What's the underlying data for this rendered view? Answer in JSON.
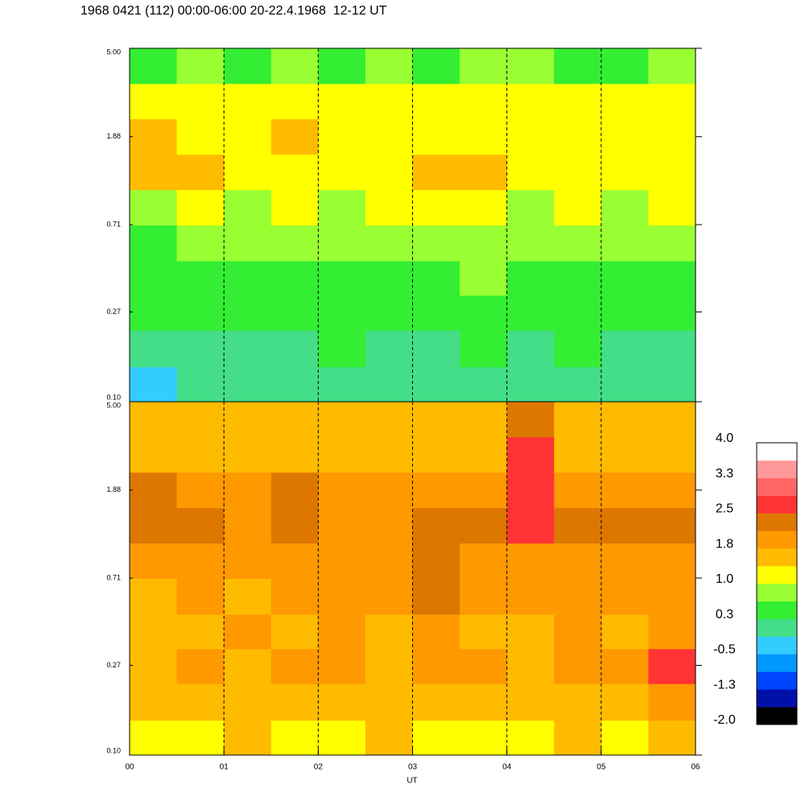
{
  "chart_data": {
    "type": "heatmap",
    "title": "1968 0421 (112) 00:00-06:00 20-22.4.1968  12-12 UT",
    "x_label": "UT",
    "xlim": [
      0,
      6
    ],
    "xticks": [
      {
        "value": 0,
        "label": "00"
      },
      {
        "value": 1,
        "label": "01"
      },
      {
        "value": 2,
        "label": "02"
      },
      {
        "value": 3,
        "label": "03"
      },
      {
        "value": 4,
        "label": "04"
      },
      {
        "value": 5,
        "label": "05"
      },
      {
        "value": 6,
        "label": "06"
      }
    ],
    "ylim": [
      0.1,
      5
    ],
    "log_y": true,
    "yticks": [
      {
        "value": 0.1,
        "label": "0.10"
      },
      0.27,
      0.71,
      1.88,
      {
        "value": 5,
        "label": "5.00"
      }
    ],
    "grid": true,
    "x": [
      0.25,
      0.75,
      1.25,
      1.75,
      2.25,
      2.75,
      3.25,
      3.75,
      4.25,
      4.75,
      5.25,
      5.75
    ],
    "y": [
      0.12,
      0.18,
      0.27,
      0.39,
      0.58,
      0.86,
      1.27,
      1.88,
      2.79,
      4.11
    ],
    "clim": [
      -2,
      4
    ],
    "colors": [
      "#000000",
      "#0011aa",
      "#0044ff",
      "#0099ff",
      "#33ccff",
      "#44dd88",
      "#33ee33",
      "#99ff33",
      "#ffff00",
      "#ffbb00",
      "#ff9900",
      "#dd7700",
      "#ff3333",
      "#ff6666",
      "#ff9999",
      "#ffffff"
    ],
    "cticks": [
      {
        "value": 4,
        "label": "4.0"
      },
      {
        "value": 3.25,
        "label": "3.3"
      },
      {
        "value": 2.5,
        "label": "2.5"
      },
      {
        "value": 1.75,
        "label": "1.8"
      },
      {
        "value": 1,
        "label": "1.0"
      },
      {
        "value": 0.25,
        "label": "0.3"
      },
      {
        "value": -0.5,
        "label": "-0.5"
      },
      {
        "value": -1.25,
        "label": "-1.3"
      },
      {
        "value": -2,
        "label": "-2.0"
      }
    ],
    "panels": [
      {
        "z": [
          [
            -0.3,
            -0.1,
            0.0,
            -0.1,
            0.0,
            0.1,
            0.0,
            0.1,
            0.0,
            0.1,
            0.0,
            0.1
          ],
          [
            -0.1,
            0.1,
            0.2,
            0.1,
            0.3,
            0.2,
            0.1,
            0.3,
            0.2,
            0.3,
            0.2,
            0.1
          ],
          [
            0.3,
            0.4,
            0.5,
            0.4,
            0.5,
            0.4,
            0.5,
            0.6,
            0.4,
            0.5,
            0.4,
            0.3
          ],
          [
            0.4,
            0.5,
            0.6,
            0.5,
            0.6,
            0.5,
            0.6,
            0.7,
            0.5,
            0.6,
            0.5,
            0.4
          ],
          [
            0.6,
            0.7,
            0.8,
            0.7,
            0.9,
            0.7,
            0.8,
            0.9,
            0.8,
            0.9,
            0.7,
            0.8
          ],
          [
            0.9,
            1.0,
            0.9,
            1.1,
            0.9,
            1.0,
            1.2,
            1.1,
            0.9,
            1.0,
            0.9,
            1.0
          ],
          [
            1.5,
            1.4,
            1.1,
            1.3,
            1.2,
            1.1,
            1.6,
            1.4,
            1.2,
            1.3,
            1.1,
            1.2
          ],
          [
            1.4,
            1.2,
            1.1,
            1.4,
            1.2,
            1.1,
            1.3,
            1.2,
            1.1,
            1.3,
            1.1,
            1.2
          ],
          [
            1.0,
            1.1,
            1.0,
            1.1,
            1.0,
            1.0,
            1.1,
            1.0,
            1.1,
            1.2,
            1.0,
            1.1
          ],
          [
            0.6,
            0.7,
            0.6,
            0.7,
            0.6,
            0.7,
            0.6,
            0.7,
            0.8,
            0.5,
            0.6,
            0.7
          ]
        ]
      },
      {
        "z": [
          [
            1.2,
            1.3,
            1.4,
            1.2,
            1.3,
            1.4,
            1.3,
            1.2,
            1.3,
            1.4,
            1.3,
            1.5
          ],
          [
            1.5,
            1.6,
            1.5,
            1.7,
            1.6,
            1.5,
            1.6,
            1.7,
            1.5,
            1.6,
            1.5,
            1.8
          ],
          [
            1.7,
            1.8,
            1.7,
            1.9,
            1.8,
            1.7,
            1.8,
            1.9,
            1.7,
            1.9,
            1.8,
            2.6
          ],
          [
            1.6,
            1.7,
            1.8,
            1.7,
            1.8,
            1.7,
            1.8,
            1.7,
            1.6,
            2.0,
            1.7,
            1.9
          ],
          [
            1.7,
            1.8,
            1.7,
            1.8,
            1.9,
            1.8,
            2.2,
            1.9,
            1.8,
            1.9,
            1.8,
            1.9
          ],
          [
            2.0,
            1.9,
            1.8,
            1.9,
            2.0,
            1.9,
            2.2,
            2.0,
            1.9,
            2.1,
            1.9,
            2.0
          ],
          [
            2.2,
            2.2,
            2.0,
            2.2,
            2.1,
            2.0,
            2.2,
            2.2,
            2.6,
            2.2,
            2.2,
            2.2
          ],
          [
            2.2,
            2.0,
            1.9,
            2.2,
            2.0,
            1.9,
            2.0,
            1.9,
            2.6,
            1.9,
            1.8,
            1.8
          ],
          [
            1.7,
            1.6,
            1.7,
            1.6,
            1.7,
            1.6,
            1.7,
            1.6,
            2.6,
            1.6,
            1.7,
            1.6
          ],
          [
            1.5,
            1.4,
            1.5,
            1.4,
            1.5,
            1.4,
            1.5,
            1.4,
            2.3,
            1.5,
            1.4,
            1.5
          ]
        ]
      }
    ]
  }
}
